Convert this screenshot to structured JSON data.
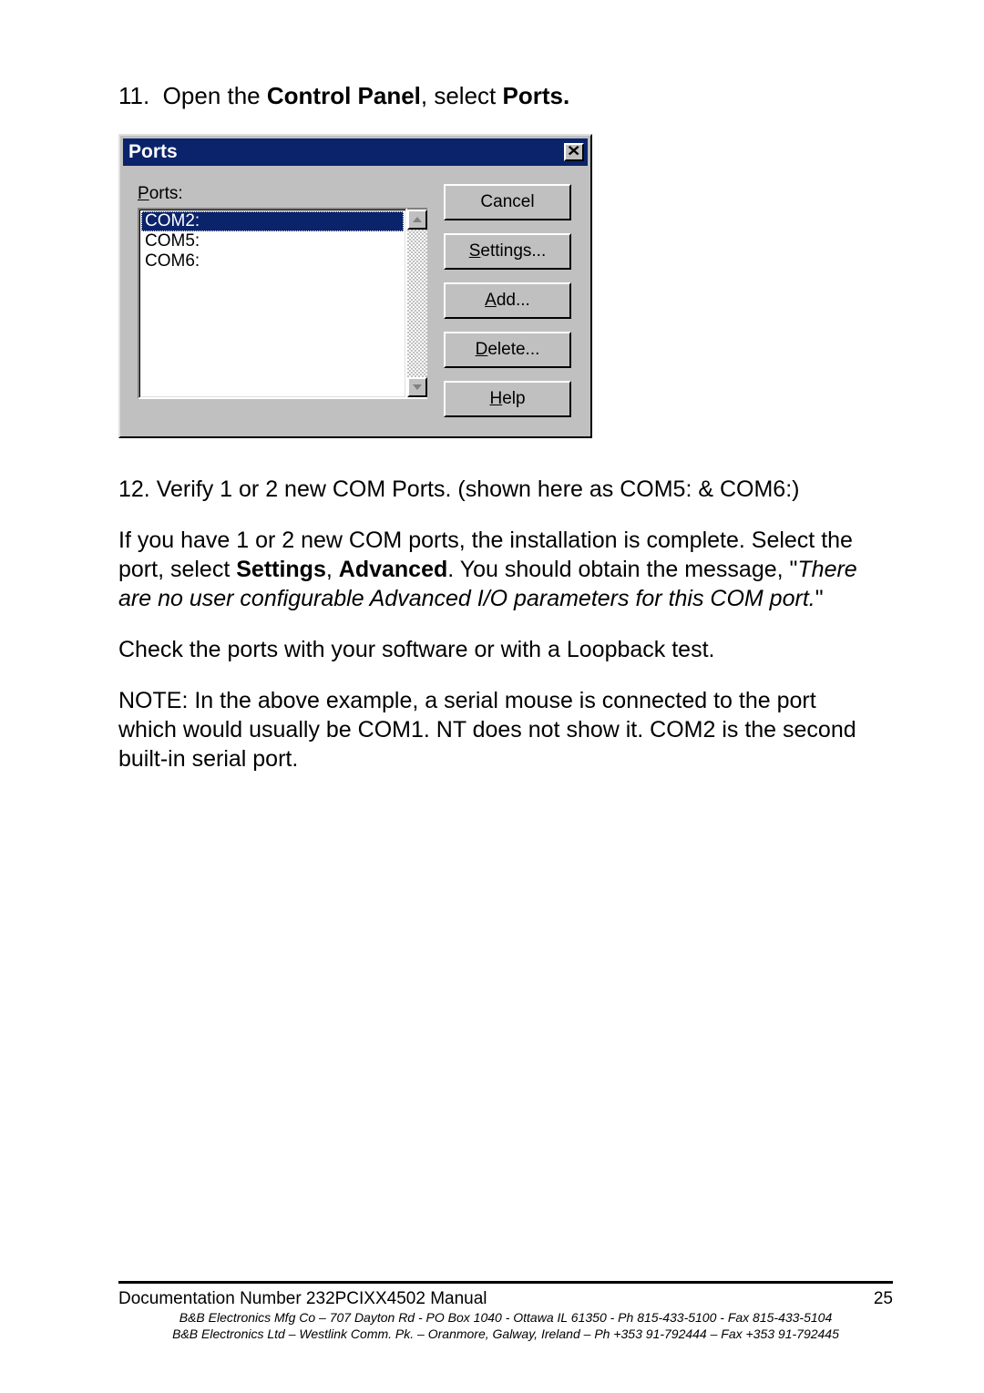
{
  "step11": {
    "num": "11.",
    "t1": "Open the ",
    "b1": "Control Panel",
    "t2": ", select ",
    "b2": "Ports."
  },
  "dialog": {
    "title": "Ports",
    "close": "×",
    "ports_label": "Ports:",
    "items": {
      "i0": "COM2:",
      "i1": "COM5:",
      "i2": "COM6:"
    },
    "buttons": {
      "cancel": "Cancel",
      "settings_u": "S",
      "settings_rest": "ettings...",
      "add_u": "A",
      "add_rest": "dd...",
      "delete_u": "D",
      "delete_rest": "elete...",
      "help_u": "H",
      "help_rest": "elp"
    }
  },
  "step12": "12.  Verify 1 or 2 new COM Ports. (shown here as COM5: & COM6:)",
  "para1": {
    "t1": "If you have 1 or 2 new COM ports, the installation is complete. Select the port, select ",
    "b1": "Settings",
    "t2": ", ",
    "b2": "Advanced",
    "t3": ".  You should obtain the message, \"",
    "i1": "There are no user configurable Advanced I/O parameters for this COM port.",
    "t4": "\""
  },
  "para2": "Check the ports with your software or with a Loopback test.",
  "para3": "NOTE:  In the above example, a serial mouse is connected to the port which would usually be COM1.  NT does not show it.  COM2 is the second built-in serial port.",
  "footer": {
    "doc": "Documentation Number 232PCIXX4502 Manual",
    "page": "25",
    "addr1": "B&B Electronics Mfg Co – 707 Dayton Rd - PO Box 1040 - Ottawa IL 61350 - Ph 815-433-5100 - Fax 815-433-5104",
    "addr2": "B&B Electronics Ltd – Westlink Comm. Pk. – Oranmore, Galway, Ireland – Ph +353 91-792444 – Fax +353 91-792445"
  },
  "colors": {
    "titlebar_bg": "#0a236b",
    "dialog_bg": "#c0c0c0"
  }
}
